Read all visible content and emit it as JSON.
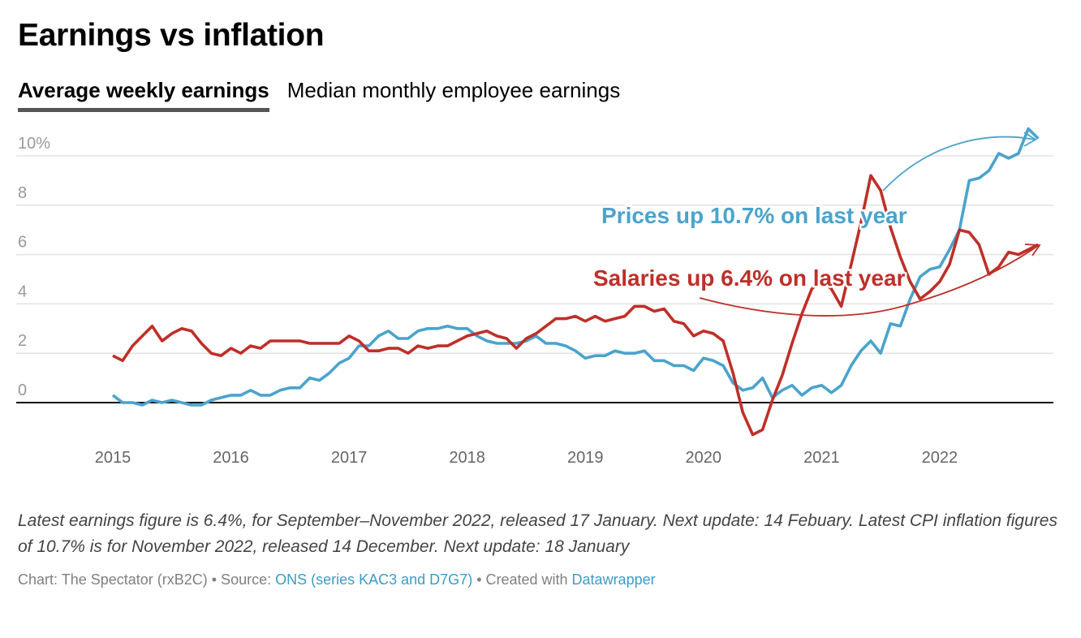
{
  "title": "Earnings vs inflation",
  "tabs": [
    {
      "label": "Average weekly earnings",
      "active": true
    },
    {
      "label": "Median monthly employee earnings",
      "active": false
    }
  ],
  "colors": {
    "earnings": "#bf2f29",
    "prices": "#4ba3cc",
    "grid": "#e3e3e3",
    "axis_text": "#999999"
  },
  "chart_data": {
    "type": "line",
    "title": "Earnings vs inflation",
    "x_start": "2015-01",
    "x_frequency": "monthly",
    "x_ticks": [
      "2015",
      "2016",
      "2017",
      "2018",
      "2019",
      "2020",
      "2021",
      "2022"
    ],
    "y_ticks": [
      {
        "value": 10,
        "label": "10%"
      },
      {
        "value": 8,
        "label": "8"
      },
      {
        "value": 6,
        "label": "6"
      },
      {
        "value": 4,
        "label": "4"
      },
      {
        "value": 2,
        "label": "2"
      },
      {
        "value": 0,
        "label": "0"
      }
    ],
    "ylim": [
      -1.5,
      11.5
    ],
    "grid": true,
    "series": [
      {
        "name": "Salaries (average weekly earnings growth)",
        "color": "#bf2f29",
        "values": [
          1.9,
          1.7,
          2.3,
          2.7,
          3.1,
          2.5,
          2.8,
          3.0,
          2.9,
          2.4,
          2.0,
          1.9,
          2.2,
          2.0,
          2.3,
          2.2,
          2.5,
          2.5,
          2.5,
          2.5,
          2.4,
          2.4,
          2.4,
          2.4,
          2.7,
          2.5,
          2.1,
          2.1,
          2.2,
          2.2,
          2.0,
          2.3,
          2.2,
          2.3,
          2.3,
          2.5,
          2.7,
          2.8,
          2.9,
          2.7,
          2.6,
          2.2,
          2.6,
          2.8,
          3.1,
          3.4,
          3.4,
          3.5,
          3.3,
          3.5,
          3.3,
          3.4,
          3.5,
          3.9,
          3.9,
          3.7,
          3.8,
          3.3,
          3.2,
          2.7,
          2.9,
          2.8,
          2.5,
          1.2,
          -0.4,
          -1.3,
          -1.1,
          0.1,
          1.1,
          2.4,
          3.6,
          4.6,
          5.0,
          4.6,
          3.9,
          5.6,
          7.3,
          9.2,
          8.6,
          7.1,
          5.9,
          4.9,
          4.2,
          4.5,
          4.9,
          5.6,
          7.0,
          6.9,
          6.4,
          5.2,
          5.5,
          6.1,
          6.0,
          6.2,
          6.4
        ]
      },
      {
        "name": "Prices (CPI inflation)",
        "color": "#4ba3cc",
        "values": [
          0.3,
          0.0,
          0.0,
          -0.1,
          0.1,
          0.0,
          0.1,
          0.0,
          -0.1,
          -0.1,
          0.1,
          0.2,
          0.3,
          0.3,
          0.5,
          0.3,
          0.3,
          0.5,
          0.6,
          0.6,
          1.0,
          0.9,
          1.2,
          1.6,
          1.8,
          2.3,
          2.3,
          2.7,
          2.9,
          2.6,
          2.6,
          2.9,
          3.0,
          3.0,
          3.1,
          3.0,
          3.0,
          2.7,
          2.5,
          2.4,
          2.4,
          2.4,
          2.5,
          2.7,
          2.4,
          2.4,
          2.3,
          2.1,
          1.8,
          1.9,
          1.9,
          2.1,
          2.0,
          2.0,
          2.1,
          1.7,
          1.7,
          1.5,
          1.5,
          1.3,
          1.8,
          1.7,
          1.5,
          0.8,
          0.5,
          0.6,
          1.0,
          0.2,
          0.5,
          0.7,
          0.3,
          0.6,
          0.7,
          0.4,
          0.7,
          1.5,
          2.1,
          2.5,
          2.0,
          3.2,
          3.1,
          4.2,
          5.1,
          5.4,
          5.5,
          6.2,
          7.0,
          9.0,
          9.1,
          9.4,
          10.1,
          9.9,
          10.1,
          11.1,
          10.7
        ]
      }
    ],
    "annotations": [
      {
        "text": "Prices up 10.7% on last year",
        "series": "prices"
      },
      {
        "text": "Salaries up 6.4% on last year",
        "series": "earnings"
      }
    ]
  },
  "footnote": "Latest earnings figure is 6.4%, for September–November 2022, released 17 January. Next update: 14 Febuary. Latest CPI inflation figures of 10.7% is for November 2022, released 14 December. Next update: 18 January",
  "credit": {
    "chart": "Chart: The Spectator (rxB2C) • Source: ",
    "source_link": "ONS (series KAC3 and D7G7)",
    "sep": " • Created with ",
    "tool_link": "Datawrapper"
  }
}
